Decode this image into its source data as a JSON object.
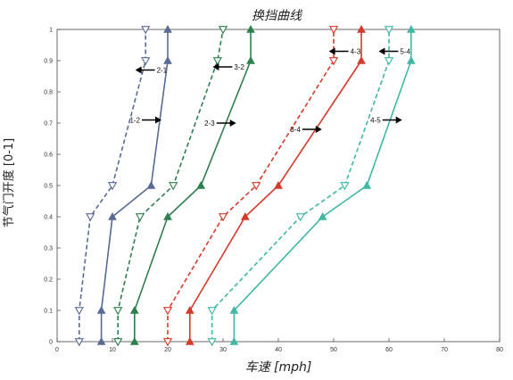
{
  "chart_data": {
    "type": "line",
    "title": "换挡曲线",
    "xlabel": "车速 [mph]",
    "ylabel": "节气门开度 [0-1]",
    "xlim": [
      0,
      80
    ],
    "ylim": [
      0,
      1
    ],
    "xticks": [
      "0",
      "10",
      "20",
      "30",
      "40",
      "50",
      "60",
      "70",
      "80"
    ],
    "yticks": [
      "0",
      "0.1",
      "0.2",
      "0.3",
      "0.4",
      "0.5",
      "0.6",
      "0.7",
      "0.8",
      "0.9",
      "1"
    ],
    "grid": false,
    "series": [
      {
        "name": "1-2",
        "style": "solid",
        "marker": "triangle-up",
        "color": "#5a6a94",
        "x": [
          8,
          8,
          10,
          17,
          20,
          20
        ],
        "y": [
          0,
          0.1,
          0.4,
          0.5,
          0.9,
          1
        ]
      },
      {
        "name": "2-1",
        "style": "dashed",
        "marker": "triangle-down",
        "color": "#5a6a94",
        "x": [
          4,
          4,
          6,
          10,
          16,
          16
        ],
        "y": [
          0,
          0.1,
          0.4,
          0.5,
          0.9,
          1
        ]
      },
      {
        "name": "2-3",
        "style": "solid",
        "marker": "triangle-up",
        "color": "#2f7f4f",
        "x": [
          14,
          14,
          20,
          26,
          35,
          35
        ],
        "y": [
          0,
          0.1,
          0.4,
          0.5,
          0.9,
          1
        ]
      },
      {
        "name": "3-2",
        "style": "dashed",
        "marker": "triangle-down",
        "color": "#2f7f4f",
        "x": [
          11,
          11,
          15,
          21,
          29,
          30
        ],
        "y": [
          0,
          0.1,
          0.4,
          0.5,
          0.9,
          1
        ]
      },
      {
        "name": "3-4",
        "style": "solid",
        "marker": "triangle-up",
        "color": "#d63a2a",
        "x": [
          24,
          24,
          34,
          40,
          55,
          55
        ],
        "y": [
          0,
          0.1,
          0.4,
          0.5,
          0.9,
          1
        ]
      },
      {
        "name": "4-3",
        "style": "dashed",
        "marker": "triangle-down",
        "color": "#d63a2a",
        "x": [
          20,
          20,
          30,
          36,
          50,
          50
        ],
        "y": [
          0,
          0.1,
          0.4,
          0.5,
          0.9,
          1
        ]
      },
      {
        "name": "4-5",
        "style": "solid",
        "marker": "triangle-up",
        "color": "#3fb8a6",
        "x": [
          32,
          32,
          48,
          56,
          64,
          64
        ],
        "y": [
          0,
          0.1,
          0.4,
          0.5,
          0.9,
          1
        ]
      },
      {
        "name": "5-4",
        "style": "dashed",
        "marker": "triangle-down",
        "color": "#3fb8a6",
        "x": [
          28,
          28,
          44,
          52,
          60,
          60
        ],
        "y": [
          0,
          0.1,
          0.4,
          0.5,
          0.9,
          1
        ]
      }
    ],
    "annotations": [
      {
        "text": "1-2",
        "x": 15,
        "y": 0.71,
        "arrow": "right"
      },
      {
        "text": "2-1",
        "x": 18,
        "y": 0.87,
        "arrow": "left"
      },
      {
        "text": "2-3",
        "x": 28.5,
        "y": 0.7,
        "arrow": "right"
      },
      {
        "text": "3-2",
        "x": 32,
        "y": 0.88,
        "arrow": "left"
      },
      {
        "text": "3-4",
        "x": 44,
        "y": 0.68,
        "arrow": "right"
      },
      {
        "text": "4-3",
        "x": 53,
        "y": 0.93,
        "arrow": "left"
      },
      {
        "text": "4-5",
        "x": 58.5,
        "y": 0.71,
        "arrow": "right"
      },
      {
        "text": "5-4",
        "x": 62,
        "y": 0.93,
        "arrow": "left"
      }
    ]
  }
}
